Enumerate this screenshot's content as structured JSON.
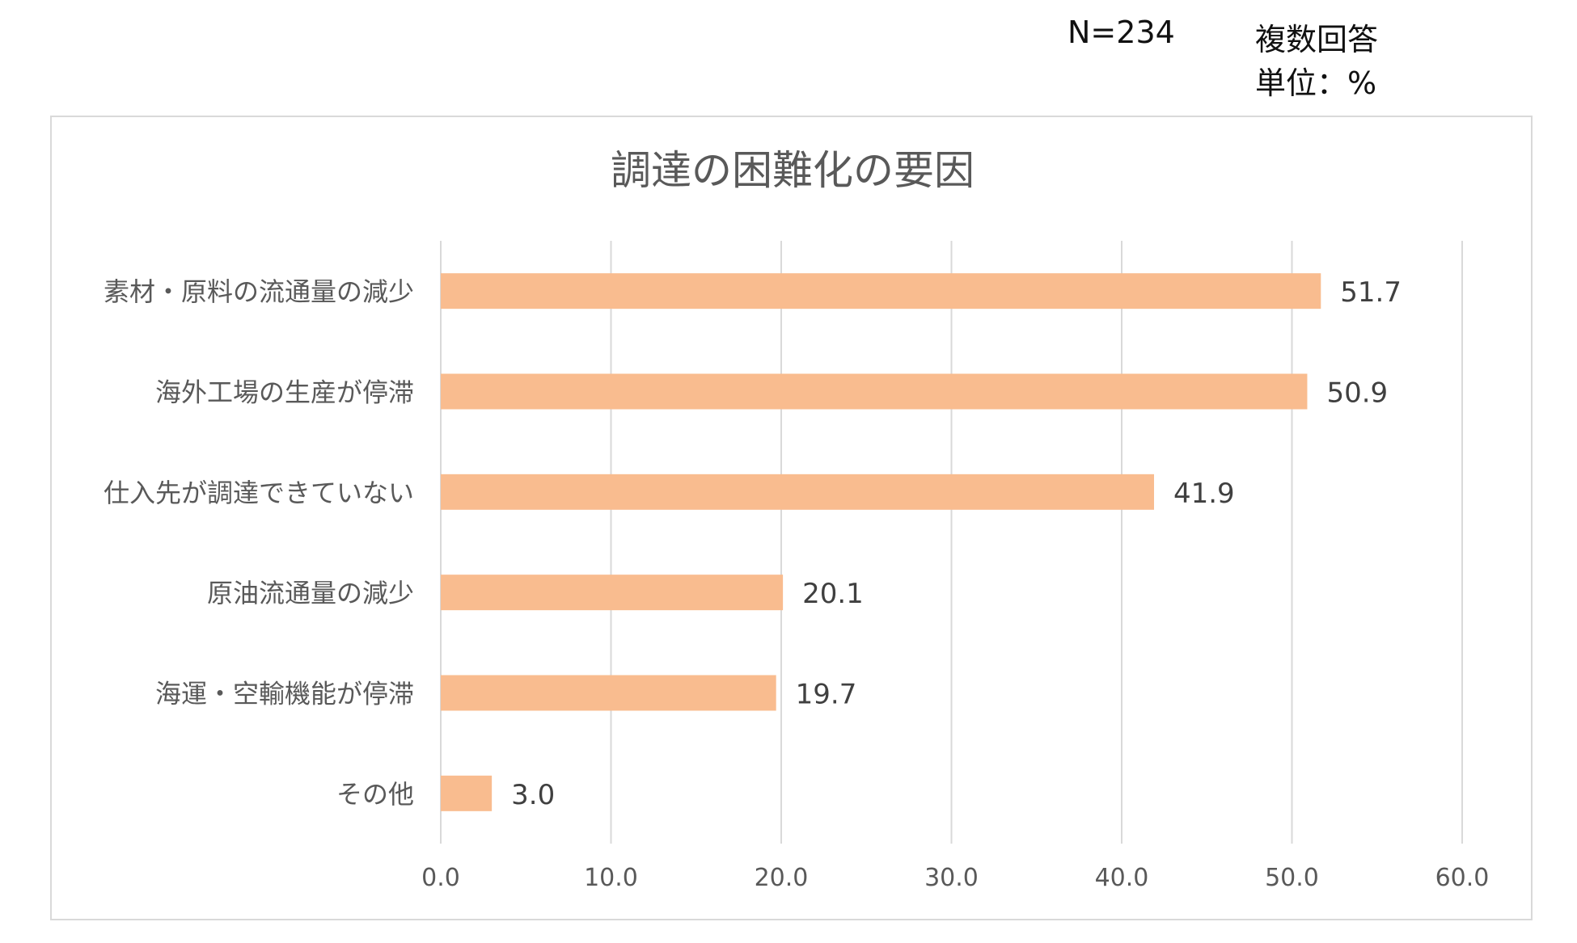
{
  "header": {
    "sample_size": "N=234",
    "answer_type": "複数回答",
    "unit": "単位：%"
  },
  "chart_data": {
    "type": "bar",
    "orientation": "horizontal",
    "title": "調達の困難化の要因",
    "categories": [
      "素材・原料の流通量の減少",
      "海外工場の生産が停滞",
      "仕入先が調達できていない",
      "原油流通量の減少",
      "海運・空輸機能が停滞",
      "その他"
    ],
    "values": [
      51.7,
      50.9,
      41.9,
      20.1,
      19.7,
      3.0
    ],
    "value_labels": [
      "51.7",
      "50.9",
      "41.9",
      "20.1",
      "19.7",
      "3.0"
    ],
    "x_ticks": [
      "0.0",
      "10.0",
      "20.0",
      "30.0",
      "40.0",
      "50.0",
      "60.0"
    ],
    "xlim": [
      0,
      60
    ],
    "xlabel": "",
    "ylabel": "",
    "grid": "vertical",
    "bar_color": "#f9bc8f",
    "gridline_color": "#d9d9d9"
  }
}
